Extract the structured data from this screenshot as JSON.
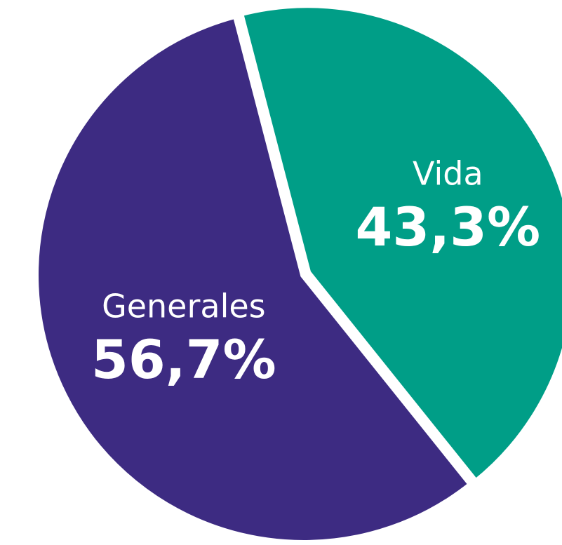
{
  "chart_data": {
    "type": "pie",
    "categories": [
      "Vida",
      "Generales"
    ],
    "values": [
      43.3,
      56.7
    ],
    "value_labels": [
      "43,3%",
      "56,7%"
    ],
    "colors": [
      "#009e87",
      "#3d2b82"
    ]
  }
}
